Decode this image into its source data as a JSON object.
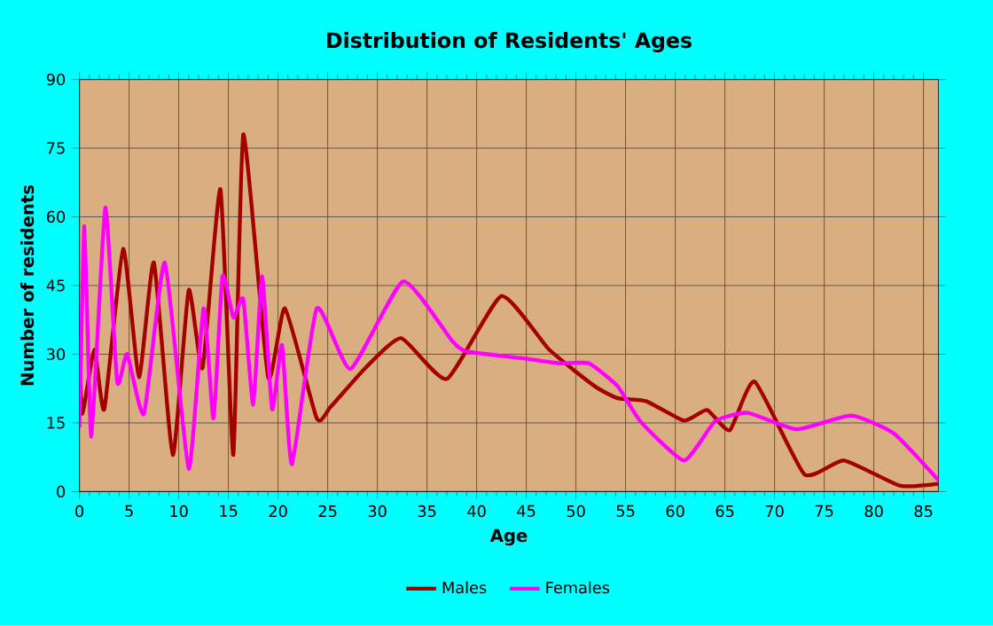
{
  "chart_data": {
    "type": "line",
    "title": "Distribution of Residents' Ages",
    "xlabel": "Age",
    "ylabel": "Number of residents",
    "xlim": [
      0,
      86.5
    ],
    "ylim": [
      0,
      90
    ],
    "xticks": [
      0,
      5,
      10,
      15,
      20,
      25,
      30,
      35,
      40,
      45,
      50,
      55,
      60,
      65,
      70,
      75,
      80,
      85
    ],
    "yticks": [
      0,
      15,
      30,
      45,
      60,
      75,
      90
    ],
    "grid": true,
    "legend": "bottom",
    "series": [
      {
        "name": "Males",
        "color": "#a50000",
        "x": [
          0,
          0.3,
          1.5,
          2.5,
          4.4,
          6,
          7.5,
          9.4,
          11,
          12.4,
          14.2,
          15.5,
          16.5,
          19,
          20.7,
          23.9,
          25.3,
          28.8,
          32.4,
          37,
          42.5,
          47.3,
          51.9,
          54.2,
          57.1,
          60.9,
          63.2,
          65.5,
          68,
          73,
          77,
          82.6,
          86.5
        ],
        "values": [
          30,
          17,
          31,
          18,
          53,
          25,
          50,
          8,
          44,
          27,
          66,
          8,
          78,
          25,
          40,
          16,
          18.5,
          27,
          33.5,
          24.6,
          42.7,
          31,
          23,
          20.4,
          19.7,
          15.5,
          17.8,
          13.4,
          24,
          3.8,
          6.8,
          1.3,
          1.7
        ]
      },
      {
        "name": "Females",
        "color": "#ff00ff",
        "x": [
          0,
          0.5,
          1.2,
          2.6,
          3.8,
          4.8,
          6.5,
          8.6,
          11,
          12.5,
          13.5,
          14.4,
          15.5,
          16.5,
          17.5,
          18.4,
          19.4,
          20.4,
          21.4,
          23.9,
          27.3,
          32.6,
          37.5,
          39,
          45,
          48.4,
          51.3,
          54.2,
          56.5,
          60.9,
          64,
          67.3,
          72.2,
          77.7,
          82,
          86.5
        ],
        "values": [
          14,
          58,
          12,
          62,
          24,
          30,
          17,
          50,
          5,
          40,
          16,
          47,
          38,
          42,
          19,
          47,
          18,
          32,
          6,
          40,
          26.8,
          45.9,
          33,
          30.6,
          29,
          28,
          28,
          23,
          15.3,
          6.8,
          15.3,
          17.2,
          13.6,
          16.6,
          12.7,
          2.5
        ]
      }
    ]
  }
}
